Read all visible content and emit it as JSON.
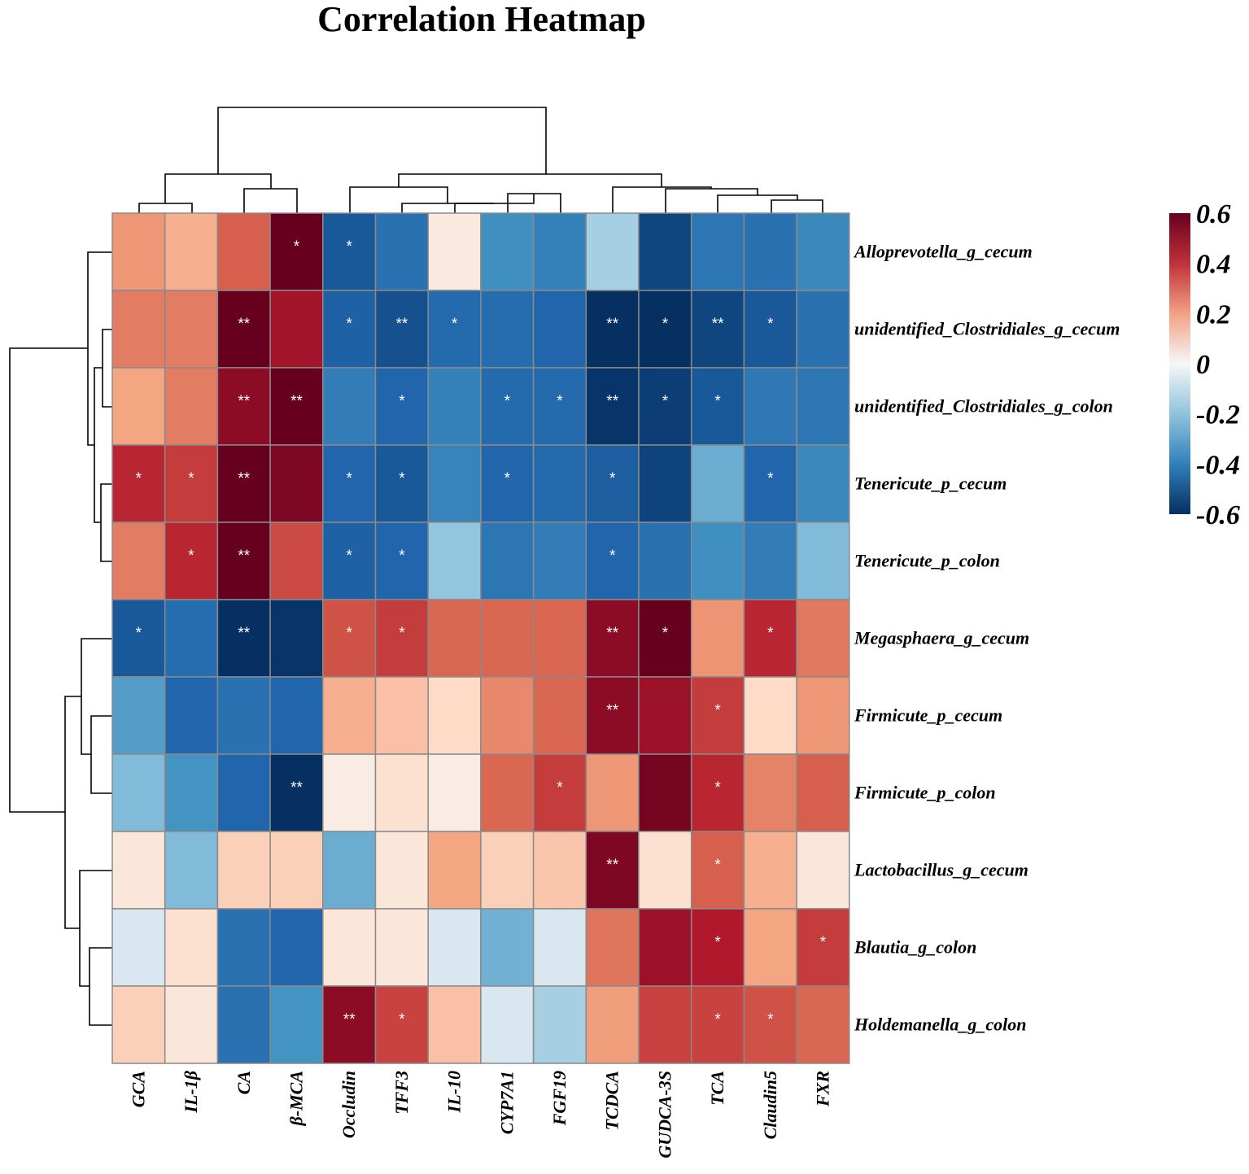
{
  "chart_data": {
    "type": "heatmap",
    "title": "Correlation Heatmap",
    "columns": [
      "GCA",
      "IL-1β",
      "CA",
      "β-MCA",
      "Occludin",
      "TFF3",
      "IL-10",
      "CYP7A1",
      "FGF19",
      "TCDCA",
      "GUDCA-3S",
      "TCA",
      "Claudin5",
      "FXR"
    ],
    "rows": [
      "Alloprevotella_g_cecum",
      "unidentified_Clostridiales_g_cecum",
      "unidentified_Clostridiales_g_colon",
      "Tenericute_p_cecum",
      "Tenericute_p_colon",
      "Megasphaera_g_cecum",
      "Firmicute_p_cecum",
      "Firmicute_p_colon",
      "Lactobacillus_g_cecum",
      "Blautia_g_colon",
      "Holdemanella_g_colon"
    ],
    "values": [
      [
        0.24,
        0.18,
        0.4,
        0.6,
        -0.45,
        -0.35,
        0.05,
        -0.22,
        -0.28,
        -0.08,
        -0.52,
        -0.33,
        -0.35,
        -0.25
      ],
      [
        0.32,
        0.32,
        0.6,
        0.52,
        -0.42,
        -0.48,
        -0.38,
        -0.37,
        -0.4,
        -0.6,
        -0.62,
        -0.52,
        -0.45,
        -0.35
      ],
      [
        0.2,
        0.32,
        0.55,
        0.6,
        -0.3,
        -0.4,
        -0.28,
        -0.38,
        -0.38,
        -0.58,
        -0.55,
        -0.45,
        -0.32,
        -0.33
      ],
      [
        0.48,
        0.45,
        0.62,
        0.57,
        -0.4,
        -0.45,
        -0.27,
        -0.4,
        -0.38,
        -0.43,
        -0.53,
        -0.15,
        -0.4,
        -0.25
      ],
      [
        0.32,
        0.48,
        0.62,
        0.43,
        -0.42,
        -0.4,
        -0.1,
        -0.33,
        -0.3,
        -0.4,
        -0.35,
        -0.22,
        -0.3,
        -0.12
      ],
      [
        -0.45,
        -0.37,
        -0.6,
        -0.58,
        0.42,
        0.45,
        0.38,
        0.38,
        0.38,
        0.55,
        0.62,
        0.25,
        0.48,
        0.33
      ],
      [
        -0.18,
        -0.4,
        -0.35,
        -0.4,
        0.18,
        0.15,
        0.1,
        0.28,
        0.38,
        0.55,
        0.53,
        0.45,
        0.1,
        0.24
      ],
      [
        -0.12,
        -0.2,
        -0.4,
        -0.6,
        0.04,
        0.08,
        0.04,
        0.38,
        0.45,
        0.24,
        0.58,
        0.48,
        0.3,
        0.4
      ],
      [
        0.06,
        -0.12,
        0.12,
        0.12,
        -0.15,
        0.06,
        0.2,
        0.12,
        0.14,
        0.57,
        0.08,
        0.4,
        0.18,
        0.06
      ],
      [
        -0.03,
        0.08,
        -0.35,
        -0.4,
        0.06,
        0.06,
        -0.03,
        -0.14,
        -0.03,
        0.34,
        0.53,
        0.5,
        0.2,
        0.45
      ],
      [
        0.12,
        0.06,
        -0.35,
        -0.2,
        0.55,
        0.44,
        0.15,
        -0.03,
        -0.08,
        0.22,
        0.44,
        0.44,
        0.42,
        0.38
      ]
    ],
    "significance": [
      [
        "",
        "",
        "",
        "*",
        "*",
        "",
        "",
        "",
        "",
        "",
        "",
        "",
        "",
        ""
      ],
      [
        "",
        "",
        "**",
        "",
        "*",
        "**",
        "*",
        "",
        "",
        "**",
        "*",
        "**",
        "*",
        ""
      ],
      [
        "",
        "",
        "**",
        "**",
        "",
        "*",
        "",
        "*",
        "*",
        "**",
        "*",
        "*",
        "",
        ""
      ],
      [
        "*",
        "*",
        "**",
        "",
        "*",
        "*",
        "",
        "*",
        "",
        "*",
        "",
        "",
        "*",
        ""
      ],
      [
        "",
        "*",
        "**",
        "",
        "*",
        "*",
        "",
        "",
        "",
        "*",
        "",
        "",
        "",
        ""
      ],
      [
        "*",
        "",
        "**",
        "",
        "*",
        "*",
        "",
        "",
        "",
        "**",
        "*",
        "",
        "*",
        ""
      ],
      [
        "",
        "",
        "",
        "",
        "",
        "",
        "",
        "",
        "",
        "**",
        "",
        "*",
        "",
        ""
      ],
      [
        "",
        "",
        "",
        "**",
        "",
        "",
        "",
        "",
        "*",
        "",
        "",
        "*",
        "",
        ""
      ],
      [
        "",
        "",
        "",
        "",
        "",
        "",
        "",
        "",
        "",
        "**",
        "",
        "*",
        "",
        ""
      ],
      [
        "",
        "",
        "",
        "",
        "",
        "",
        "",
        "",
        "",
        "",
        "",
        "*",
        "",
        "*"
      ],
      [
        "",
        "",
        "",
        "",
        "**",
        "*",
        "",
        "",
        "",
        "",
        "",
        "*",
        "*",
        ""
      ]
    ],
    "colorbar": {
      "range": [
        -0.6,
        0.6
      ],
      "ticks": [
        "0.6",
        "0.4",
        "0.2",
        "0",
        "-0.2",
        "-0.4",
        "-0.6"
      ],
      "colors": {
        "low": "#053061",
        "mid": "#f7f7f7",
        "high": "#67001f"
      }
    }
  }
}
